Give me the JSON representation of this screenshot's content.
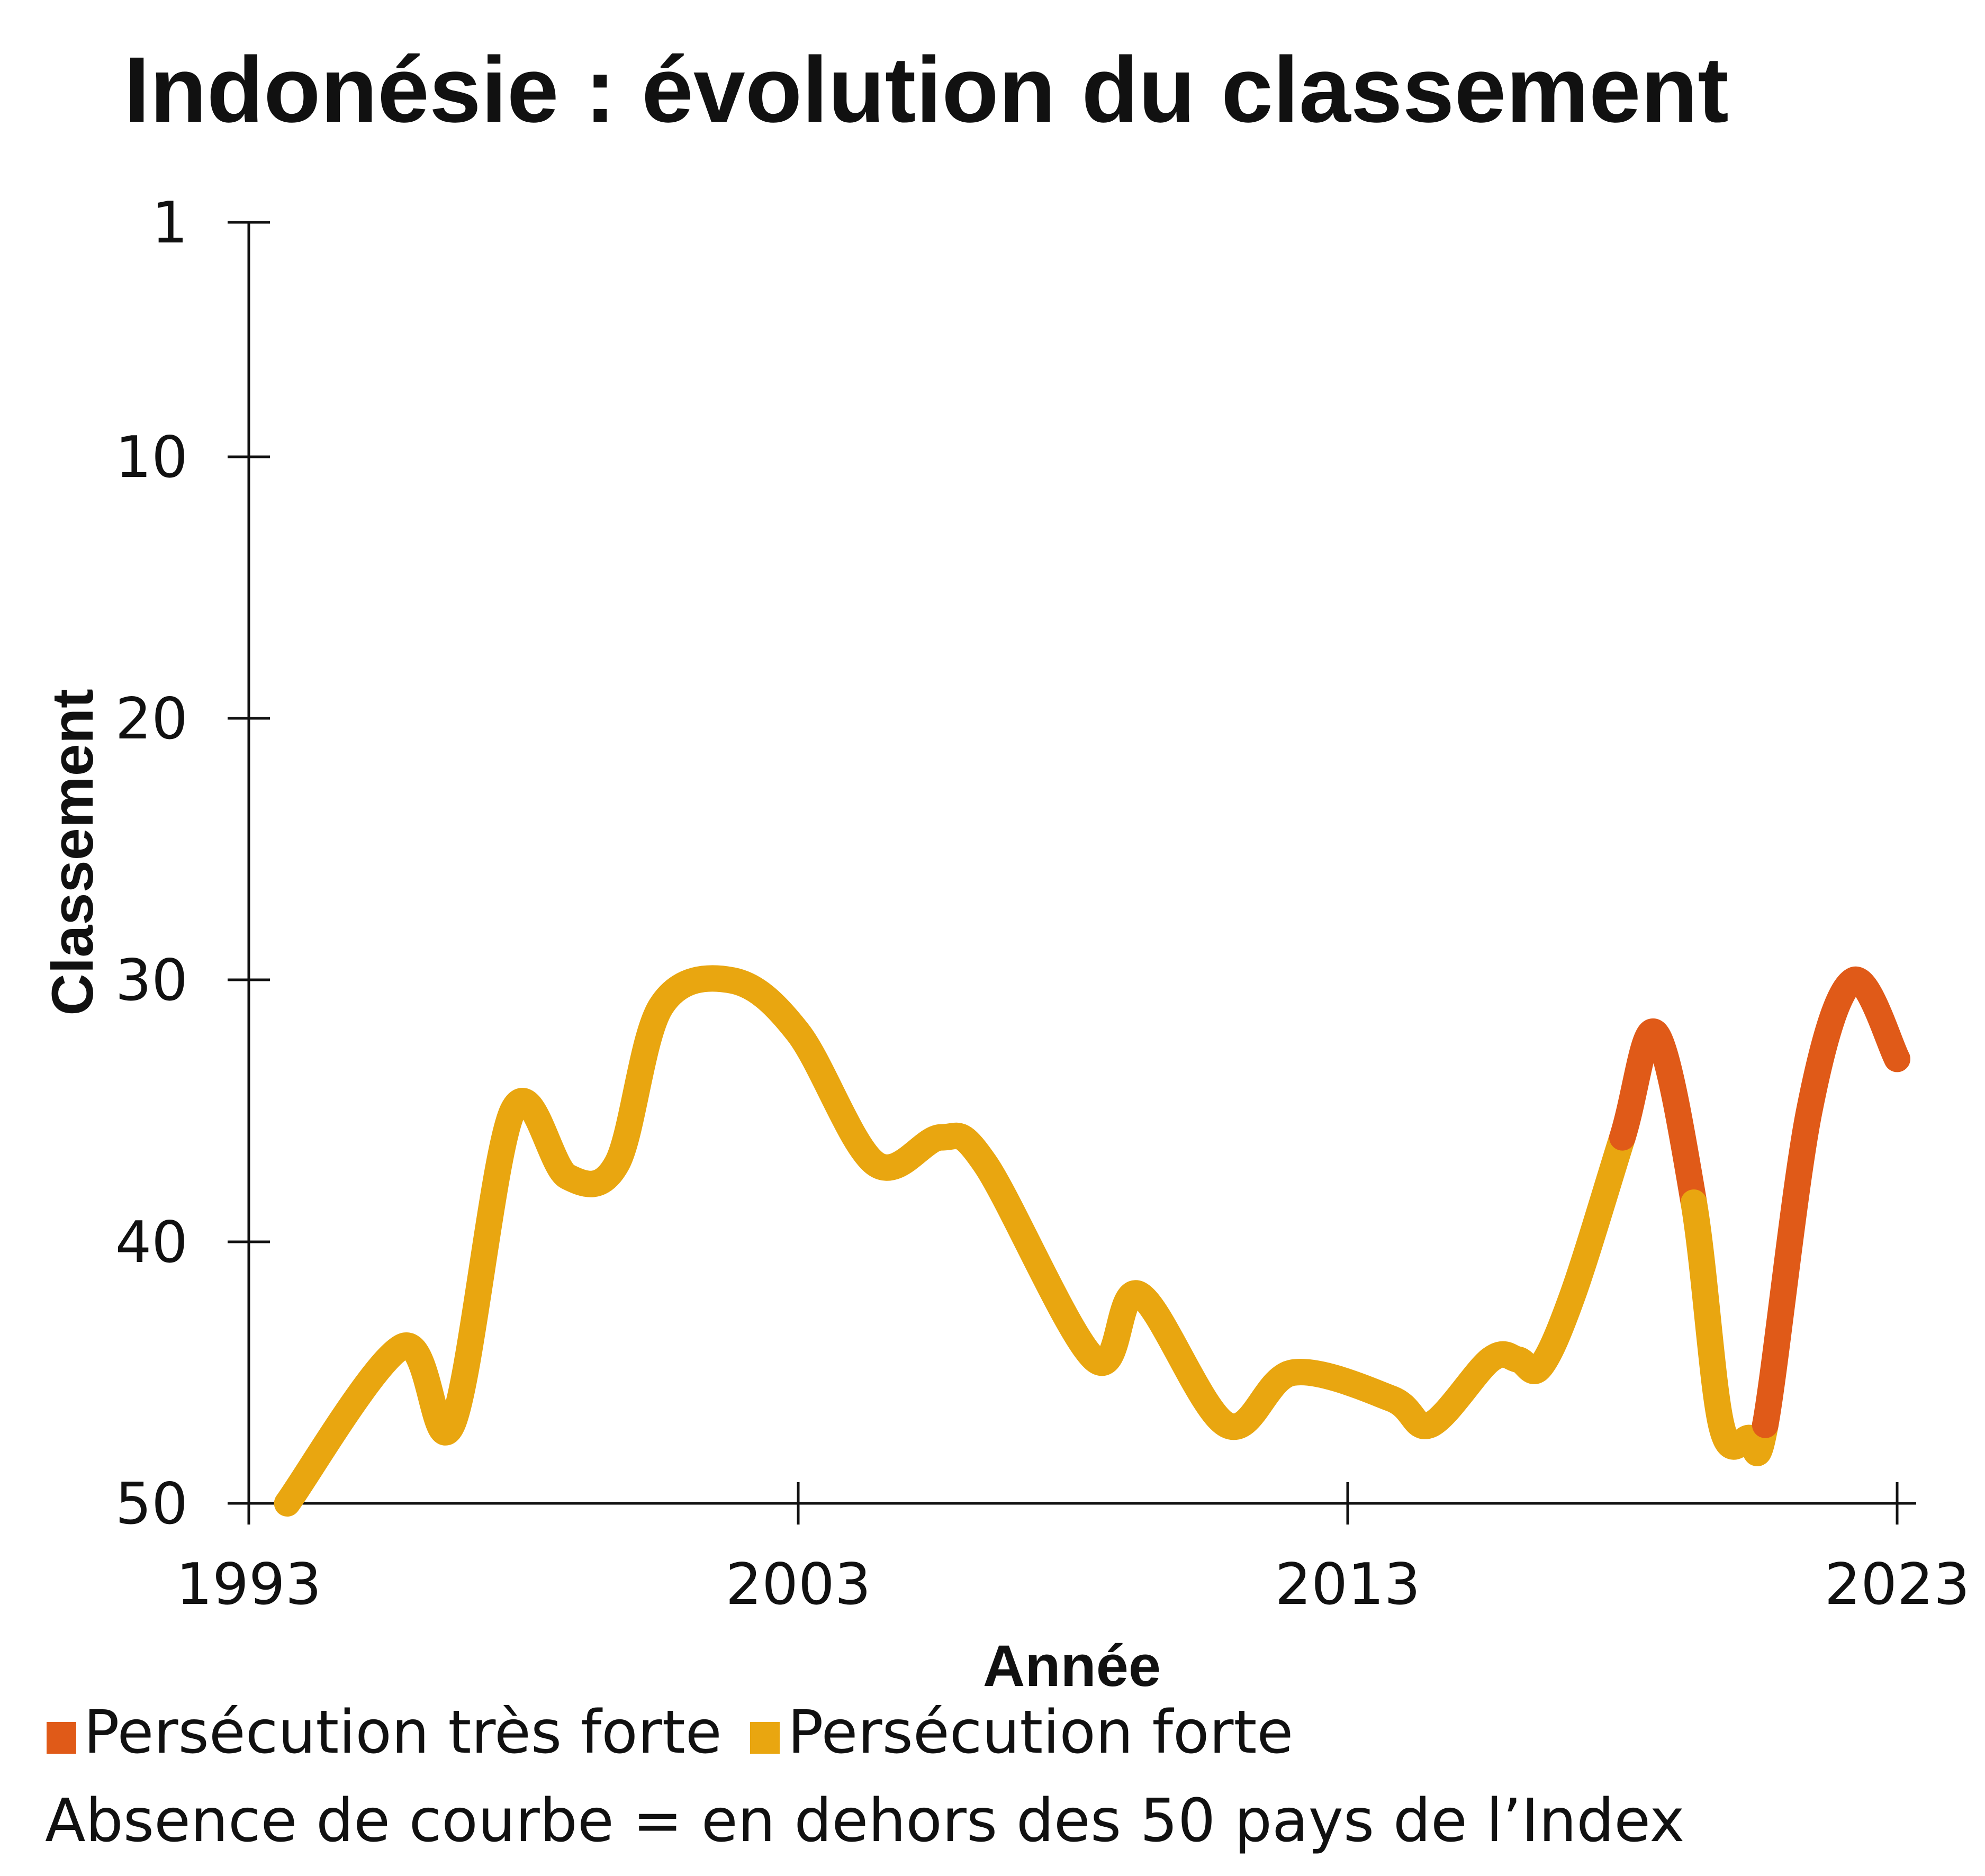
{
  "chart_data": {
    "type": "line",
    "title": "Indonésie : évolution du classement",
    "xlabel": "Année",
    "ylabel": "Classement",
    "y_reversed": true,
    "xlim": [
      1993,
      2023
    ],
    "ylim": [
      1,
      50
    ],
    "x_ticks": [
      "1993",
      "2003",
      "2013",
      "2023"
    ],
    "y_ticks": [
      "1",
      "10",
      "20",
      "30",
      "40",
      "50"
    ],
    "grid": false,
    "colors": {
      "very_strong": "#E05A18",
      "strong": "#E9A610"
    },
    "points": [
      {
        "year": 1993.7,
        "rank": 50
      },
      {
        "year": 1995.8,
        "rank": 44
      },
      {
        "year": 1996.7,
        "rank": 47
      },
      {
        "year": 1997.8,
        "rank": 35
      },
      {
        "year": 1998.8,
        "rank": 37.5
      },
      {
        "year": 1999.7,
        "rank": 37
      },
      {
        "year": 2000.5,
        "rank": 31
      },
      {
        "year": 2001.8,
        "rank": 30
      },
      {
        "year": 2003.0,
        "rank": 32
      },
      {
        "year": 2004.4,
        "rank": 37
      },
      {
        "year": 2005.6,
        "rank": 36
      },
      {
        "year": 2006.4,
        "rank": 37
      },
      {
        "year": 2008.4,
        "rank": 44.5
      },
      {
        "year": 2009.2,
        "rank": 42
      },
      {
        "year": 2010.8,
        "rank": 47
      },
      {
        "year": 2012.0,
        "rank": 45
      },
      {
        "year": 2013.8,
        "rank": 46
      },
      {
        "year": 2014.5,
        "rank": 47
      },
      {
        "year": 2015.6,
        "rank": 44.5
      },
      {
        "year": 2016.1,
        "rank": 44.5
      },
      {
        "year": 2016.5,
        "rank": 44.8
      },
      {
        "year": 2017.1,
        "rank": 42
      },
      {
        "year": 2018.0,
        "rank": 36
      },
      {
        "year": 2018.6,
        "rank": 32
      },
      {
        "year": 2019.3,
        "rank": 38.5
      },
      {
        "year": 2019.8,
        "rank": 47
      },
      {
        "year": 2020.3,
        "rank": 47.5
      },
      {
        "year": 2020.6,
        "rank": 47
      },
      {
        "year": 2021.4,
        "rank": 35
      },
      {
        "year": 2022.2,
        "rank": 30
      },
      {
        "year": 2023.0,
        "rank": 33
      }
    ],
    "segments": [
      {
        "level": "strong",
        "from": 0,
        "to": 22
      },
      {
        "level": "very_strong",
        "from": 22,
        "to": 24
      },
      {
        "level": "strong",
        "from": 24,
        "to": 27
      },
      {
        "level": "very_strong",
        "from": 27,
        "to": 30
      }
    ]
  },
  "legend": {
    "very_strong_label": "Persécution très forte",
    "strong_label": "Persécution forte"
  },
  "note": "Absence de courbe = en dehors des 50 pays de l’Index"
}
